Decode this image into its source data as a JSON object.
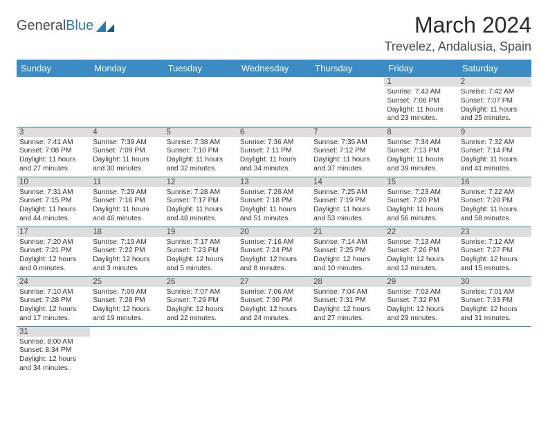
{
  "header": {
    "logo_text_1": "General",
    "logo_text_2": "Blue",
    "month_year": "March 2024",
    "location": "Trevelez, Andalusia, Spain"
  },
  "colors": {
    "header_bg": "#3b8bc4",
    "header_text": "#ffffff",
    "daynum_bg": "#dedede",
    "border": "#2a7ab0",
    "logo_blue": "#2a7ab0"
  },
  "dow": [
    "Sunday",
    "Monday",
    "Tuesday",
    "Wednesday",
    "Thursday",
    "Friday",
    "Saturday"
  ],
  "weeks": [
    [
      null,
      null,
      null,
      null,
      null,
      {
        "n": "1",
        "sr": "7:43 AM",
        "ss": "7:06 PM",
        "dl": "11 hours and 23 minutes."
      },
      {
        "n": "2",
        "sr": "7:42 AM",
        "ss": "7:07 PM",
        "dl": "11 hours and 25 minutes."
      }
    ],
    [
      {
        "n": "3",
        "sr": "7:41 AM",
        "ss": "7:08 PM",
        "dl": "11 hours and 27 minutes."
      },
      {
        "n": "4",
        "sr": "7:39 AM",
        "ss": "7:09 PM",
        "dl": "11 hours and 30 minutes."
      },
      {
        "n": "5",
        "sr": "7:38 AM",
        "ss": "7:10 PM",
        "dl": "11 hours and 32 minutes."
      },
      {
        "n": "6",
        "sr": "7:36 AM",
        "ss": "7:11 PM",
        "dl": "11 hours and 34 minutes."
      },
      {
        "n": "7",
        "sr": "7:35 AM",
        "ss": "7:12 PM",
        "dl": "11 hours and 37 minutes."
      },
      {
        "n": "8",
        "sr": "7:34 AM",
        "ss": "7:13 PM",
        "dl": "11 hours and 39 minutes."
      },
      {
        "n": "9",
        "sr": "7:32 AM",
        "ss": "7:14 PM",
        "dl": "11 hours and 41 minutes."
      }
    ],
    [
      {
        "n": "10",
        "sr": "7:31 AM",
        "ss": "7:15 PM",
        "dl": "11 hours and 44 minutes."
      },
      {
        "n": "11",
        "sr": "7:29 AM",
        "ss": "7:16 PM",
        "dl": "11 hours and 46 minutes."
      },
      {
        "n": "12",
        "sr": "7:28 AM",
        "ss": "7:17 PM",
        "dl": "11 hours and 48 minutes."
      },
      {
        "n": "13",
        "sr": "7:26 AM",
        "ss": "7:18 PM",
        "dl": "11 hours and 51 minutes."
      },
      {
        "n": "14",
        "sr": "7:25 AM",
        "ss": "7:19 PM",
        "dl": "11 hours and 53 minutes."
      },
      {
        "n": "15",
        "sr": "7:23 AM",
        "ss": "7:20 PM",
        "dl": "11 hours and 56 minutes."
      },
      {
        "n": "16",
        "sr": "7:22 AM",
        "ss": "7:20 PM",
        "dl": "11 hours and 58 minutes."
      }
    ],
    [
      {
        "n": "17",
        "sr": "7:20 AM",
        "ss": "7:21 PM",
        "dl": "12 hours and 0 minutes."
      },
      {
        "n": "18",
        "sr": "7:19 AM",
        "ss": "7:22 PM",
        "dl": "12 hours and 3 minutes."
      },
      {
        "n": "19",
        "sr": "7:17 AM",
        "ss": "7:23 PM",
        "dl": "12 hours and 5 minutes."
      },
      {
        "n": "20",
        "sr": "7:16 AM",
        "ss": "7:24 PM",
        "dl": "12 hours and 8 minutes."
      },
      {
        "n": "21",
        "sr": "7:14 AM",
        "ss": "7:25 PM",
        "dl": "12 hours and 10 minutes."
      },
      {
        "n": "22",
        "sr": "7:13 AM",
        "ss": "7:26 PM",
        "dl": "12 hours and 12 minutes."
      },
      {
        "n": "23",
        "sr": "7:12 AM",
        "ss": "7:27 PM",
        "dl": "12 hours and 15 minutes."
      }
    ],
    [
      {
        "n": "24",
        "sr": "7:10 AM",
        "ss": "7:28 PM",
        "dl": "12 hours and 17 minutes."
      },
      {
        "n": "25",
        "sr": "7:09 AM",
        "ss": "7:28 PM",
        "dl": "12 hours and 19 minutes."
      },
      {
        "n": "26",
        "sr": "7:07 AM",
        "ss": "7:29 PM",
        "dl": "12 hours and 22 minutes."
      },
      {
        "n": "27",
        "sr": "7:06 AM",
        "ss": "7:30 PM",
        "dl": "12 hours and 24 minutes."
      },
      {
        "n": "28",
        "sr": "7:04 AM",
        "ss": "7:31 PM",
        "dl": "12 hours and 27 minutes."
      },
      {
        "n": "29",
        "sr": "7:03 AM",
        "ss": "7:32 PM",
        "dl": "12 hours and 29 minutes."
      },
      {
        "n": "30",
        "sr": "7:01 AM",
        "ss": "7:33 PM",
        "dl": "12 hours and 31 minutes."
      }
    ],
    [
      {
        "n": "31",
        "sr": "8:00 AM",
        "ss": "8:34 PM",
        "dl": "12 hours and 34 minutes."
      },
      null,
      null,
      null,
      null,
      null,
      null
    ]
  ],
  "labels": {
    "sunrise": "Sunrise: ",
    "sunset": "Sunset: ",
    "daylight": "Daylight: "
  }
}
